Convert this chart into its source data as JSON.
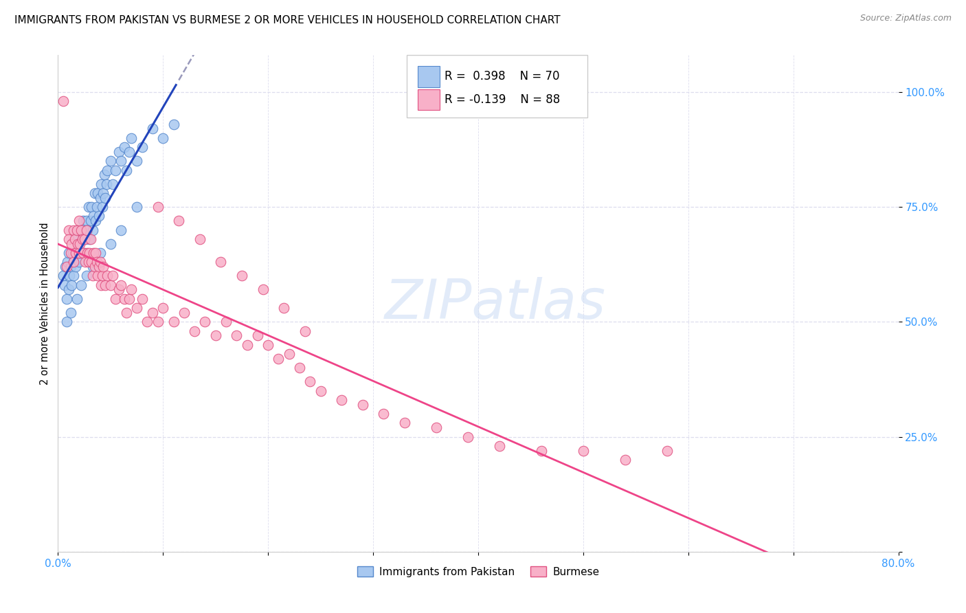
{
  "title": "IMMIGRANTS FROM PAKISTAN VS BURMESE 2 OR MORE VEHICLES IN HOUSEHOLD CORRELATION CHART",
  "source": "Source: ZipAtlas.com",
  "ylabel": "2 or more Vehicles in Household",
  "ytick_labels": [
    "",
    "25.0%",
    "50.0%",
    "75.0%",
    "100.0%"
  ],
  "ytick_values": [
    0.0,
    0.25,
    0.5,
    0.75,
    1.0
  ],
  "xlim": [
    0.0,
    0.8
  ],
  "ylim": [
    0.0,
    1.08
  ],
  "pakistan_R": 0.398,
  "pakistan_N": 70,
  "burmese_R": -0.139,
  "burmese_N": 88,
  "pakistan_color": "#a8c8f0",
  "pakistan_edge_color": "#5588cc",
  "burmese_color": "#f8b0c8",
  "burmese_edge_color": "#e05080",
  "pakistan_line_color": "#2244bb",
  "burmese_line_color": "#ee4488",
  "dashed_color": "#9999bb",
  "watermark": "ZIPatlas",
  "watermark_color": "#d0dff5",
  "legend_label_pakistan": "Immigrants from Pakistan",
  "legend_label_burmese": "Burmese",
  "pakistan_x": [
    0.005,
    0.006,
    0.007,
    0.008,
    0.009,
    0.01,
    0.01,
    0.011,
    0.012,
    0.013,
    0.014,
    0.015,
    0.015,
    0.016,
    0.017,
    0.018,
    0.019,
    0.02,
    0.02,
    0.021,
    0.022,
    0.023,
    0.024,
    0.025,
    0.026,
    0.027,
    0.028,
    0.029,
    0.03,
    0.031,
    0.032,
    0.033,
    0.034,
    0.035,
    0.036,
    0.037,
    0.038,
    0.039,
    0.04,
    0.041,
    0.042,
    0.043,
    0.044,
    0.045,
    0.046,
    0.047,
    0.05,
    0.052,
    0.055,
    0.058,
    0.06,
    0.063,
    0.065,
    0.068,
    0.07,
    0.075,
    0.08,
    0.09,
    0.1,
    0.11,
    0.008,
    0.012,
    0.018,
    0.022,
    0.027,
    0.033,
    0.04,
    0.05,
    0.06,
    0.075
  ],
  "pakistan_y": [
    0.6,
    0.58,
    0.62,
    0.55,
    0.63,
    0.57,
    0.65,
    0.6,
    0.62,
    0.58,
    0.65,
    0.6,
    0.63,
    0.68,
    0.62,
    0.65,
    0.7,
    0.63,
    0.67,
    0.65,
    0.7,
    0.68,
    0.72,
    0.65,
    0.68,
    0.72,
    0.7,
    0.75,
    0.68,
    0.72,
    0.75,
    0.7,
    0.73,
    0.78,
    0.72,
    0.75,
    0.78,
    0.73,
    0.77,
    0.8,
    0.75,
    0.78,
    0.82,
    0.77,
    0.8,
    0.83,
    0.85,
    0.8,
    0.83,
    0.87,
    0.85,
    0.88,
    0.83,
    0.87,
    0.9,
    0.85,
    0.88,
    0.92,
    0.9,
    0.93,
    0.5,
    0.52,
    0.55,
    0.58,
    0.6,
    0.62,
    0.65,
    0.67,
    0.7,
    0.75
  ],
  "burmese_x": [
    0.005,
    0.008,
    0.01,
    0.01,
    0.012,
    0.013,
    0.015,
    0.015,
    0.016,
    0.017,
    0.018,
    0.019,
    0.02,
    0.02,
    0.021,
    0.022,
    0.023,
    0.024,
    0.025,
    0.026,
    0.027,
    0.028,
    0.029,
    0.03,
    0.031,
    0.032,
    0.033,
    0.034,
    0.035,
    0.036,
    0.037,
    0.038,
    0.039,
    0.04,
    0.041,
    0.042,
    0.043,
    0.045,
    0.047,
    0.05,
    0.052,
    0.055,
    0.058,
    0.06,
    0.063,
    0.065,
    0.068,
    0.07,
    0.075,
    0.08,
    0.085,
    0.09,
    0.095,
    0.1,
    0.11,
    0.12,
    0.13,
    0.14,
    0.15,
    0.16,
    0.17,
    0.18,
    0.19,
    0.2,
    0.21,
    0.22,
    0.23,
    0.24,
    0.25,
    0.27,
    0.29,
    0.31,
    0.33,
    0.36,
    0.39,
    0.42,
    0.46,
    0.5,
    0.54,
    0.58,
    0.095,
    0.115,
    0.135,
    0.155,
    0.175,
    0.195,
    0.215,
    0.235
  ],
  "burmese_y": [
    0.98,
    0.62,
    0.7,
    0.68,
    0.65,
    0.67,
    0.7,
    0.63,
    0.68,
    0.65,
    0.7,
    0.67,
    0.65,
    0.72,
    0.67,
    0.7,
    0.68,
    0.65,
    0.68,
    0.63,
    0.7,
    0.65,
    0.63,
    0.65,
    0.68,
    0.63,
    0.6,
    0.65,
    0.62,
    0.65,
    0.63,
    0.6,
    0.62,
    0.63,
    0.58,
    0.6,
    0.62,
    0.58,
    0.6,
    0.58,
    0.6,
    0.55,
    0.57,
    0.58,
    0.55,
    0.52,
    0.55,
    0.57,
    0.53,
    0.55,
    0.5,
    0.52,
    0.5,
    0.53,
    0.5,
    0.52,
    0.48,
    0.5,
    0.47,
    0.5,
    0.47,
    0.45,
    0.47,
    0.45,
    0.42,
    0.43,
    0.4,
    0.37,
    0.35,
    0.33,
    0.32,
    0.3,
    0.28,
    0.27,
    0.25,
    0.23,
    0.22,
    0.22,
    0.2,
    0.22,
    0.75,
    0.72,
    0.68,
    0.63,
    0.6,
    0.57,
    0.53,
    0.48
  ],
  "grid_color": "#ddddee",
  "title_fontsize": 11,
  "axis_tick_color": "#3399ff",
  "background_color": "#ffffff"
}
